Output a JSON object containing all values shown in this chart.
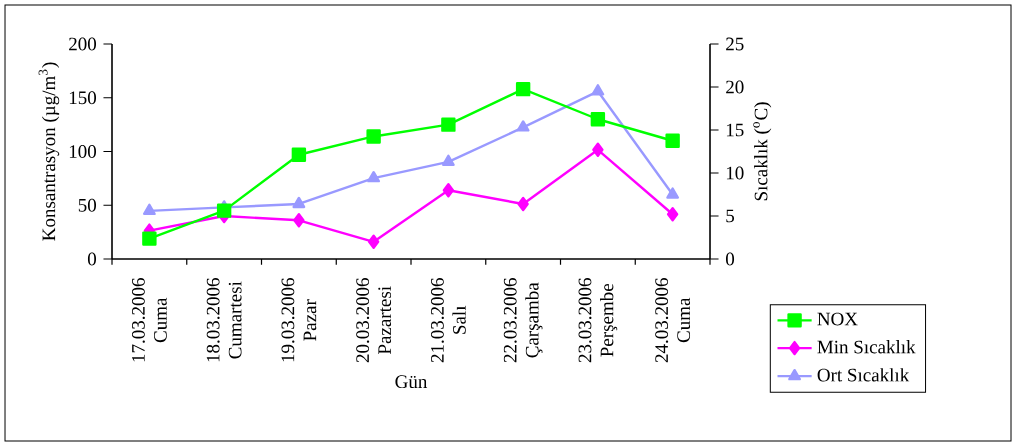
{
  "chart_data": {
    "type": "line",
    "xlabel": "Gün",
    "ylabel": "Konsantrasyon (µg/m$^{3}$)",
    "y2label": "Sıcaklık ($^{o}$C)",
    "categories": [
      "17.03.2006 Cuma",
      "18.03.2006 Cumartesi",
      "19.03.2006 Pazar",
      "20.03.2006 Pazartesi",
      "21.03.2006 Salı",
      "22.03.2006 Çarşamba",
      "23.03.2006 Perşembe",
      "24.03.2006 Cuma"
    ],
    "series": [
      {
        "name": "NOX",
        "color": "#00ff00",
        "marker": "square",
        "values": [
          19,
          45,
          97,
          114,
          125,
          158,
          130,
          110
        ]
      },
      {
        "name": "Min Sıcaklık",
        "color": "#ff00ff",
        "marker": "diamond",
        "axis": "y2",
        "values": [
          3.3,
          5.0,
          4.5,
          2.0,
          8.0,
          6.4,
          12.7,
          5.2
        ]
      },
      {
        "name": "Ort Sıcaklık",
        "color": "#9999ff",
        "marker": "triangle",
        "axis": "y2",
        "values": [
          5.6,
          6.0,
          6.4,
          9.4,
          11.3,
          15.3,
          19.5,
          7.5
        ]
      }
    ],
    "ylim": [
      0,
      200
    ],
    "yticks": [
      0,
      50,
      100,
      150,
      200
    ],
    "y2lim": [
      0,
      25
    ],
    "y2ticks": [
      0,
      5,
      10,
      15,
      20,
      25
    ],
    "grid": false,
    "legend": "bottom right"
  }
}
